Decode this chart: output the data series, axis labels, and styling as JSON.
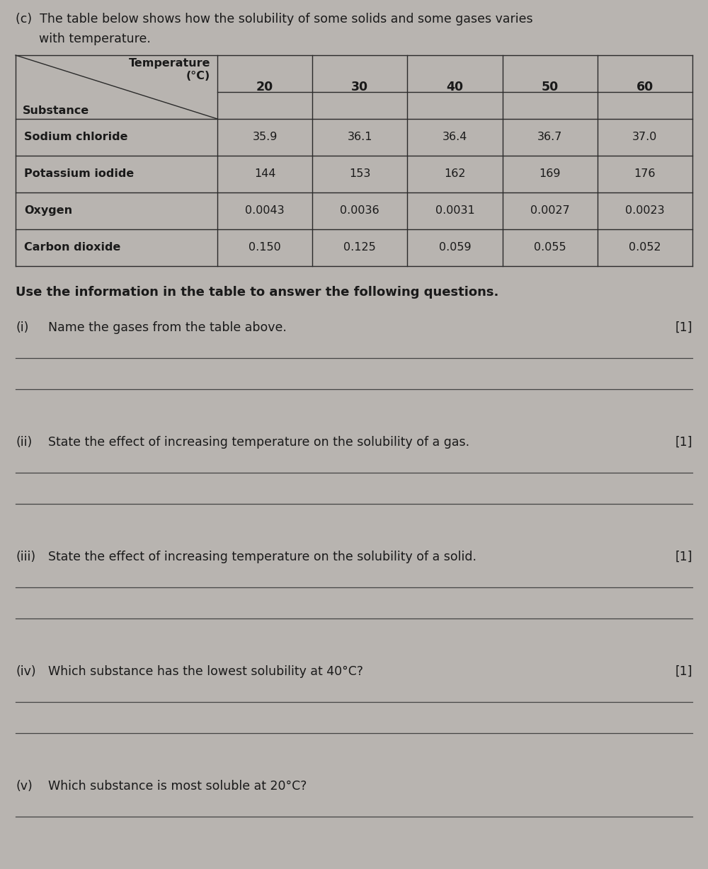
{
  "page_bg": "#b8b4b0",
  "content_bg": "#c8c5c2",
  "intro_line1": "(c)  The table below shows how the solubility of some solids and some gases varies",
  "intro_line2": "      with temperature.",
  "table": {
    "col_temps": [
      "20",
      "30",
      "40",
      "50",
      "60"
    ],
    "rows": [
      [
        "Sodium chloride",
        "35.9",
        "36.1",
        "36.4",
        "36.7",
        "37.0"
      ],
      [
        "Potassium iodide",
        "144",
        "153",
        "162",
        "169",
        "176"
      ],
      [
        "Oxygen",
        "0.0043",
        "0.0036",
        "0.0031",
        "0.0027",
        "0.0023"
      ],
      [
        "Carbon dioxide",
        "0.150",
        "0.125",
        "0.059",
        "0.055",
        "0.052"
      ]
    ]
  },
  "bold_instruction": "Use the information in the table to answer the following questions.",
  "questions": [
    {
      "label": "(i)",
      "text": "Name the gases from the table above.",
      "mark": "[1]",
      "lines": 2
    },
    {
      "label": "(ii)",
      "text": "State the effect of increasing temperature on the solubility of a gas.",
      "mark": "[1]",
      "lines": 2
    },
    {
      "label": "(iii)",
      "text": "State the effect of increasing temperature on the solubility of a solid.",
      "mark": "[1]",
      "lines": 2
    },
    {
      "label": "(iv)",
      "text": "Which substance has the lowest solubility at 40°C?",
      "mark": "[1]",
      "lines": 2
    },
    {
      "label": "(v)",
      "text": "Which substance is most soluble at 20°C?",
      "mark": "",
      "lines": 1
    }
  ]
}
